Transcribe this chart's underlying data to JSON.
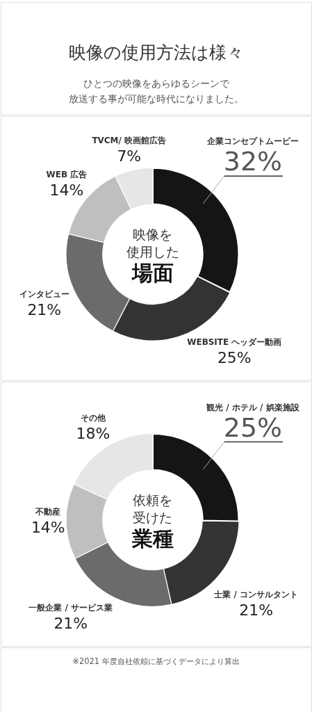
{
  "chart_data": [
    {
      "type": "other",
      "title": "映像の使用方法は様々",
      "annotations": [
        "ひとつの映像をあらゆるシーンで",
        "放送する事が可能な時代になりました。"
      ]
    },
    {
      "type": "donut",
      "categories": [
        "企業コンセプトムービー",
        "WEBSITE ヘッダー動画",
        "インタビュー",
        "WEB 広告",
        "TVCM/ 映画館広告"
      ],
      "values": [
        32,
        25,
        21,
        14,
        7
      ],
      "colors": [
        "#151515",
        "#333333",
        "#6b6b6b",
        "#bfbfbf",
        "#e6e6e6"
      ],
      "value_labels": [
        "32%",
        "25%",
        "21%",
        "14%",
        "7%"
      ],
      "annotations": [
        "映像を",
        "使用した",
        "場面"
      ]
    },
    {
      "type": "donut",
      "categories": [
        "観光 / ホテル / 娯楽施設",
        "士業 / コンサルタント",
        "一般企業 / サービス業",
        "不動産",
        "その他"
      ],
      "values": [
        25,
        21,
        21,
        14,
        18
      ],
      "colors": [
        "#151515",
        "#333333",
        "#6b6b6b",
        "#bfbfbf",
        "#e6e6e6"
      ],
      "value_labels": [
        "25%",
        "21%",
        "21%",
        "14%",
        "18%"
      ],
      "annotations": [
        "依頼を",
        "受けた",
        "業種"
      ]
    },
    {
      "type": "other",
      "annotations": [
        "※2021 年度自社依頼に基づくデータにより算出"
      ]
    }
  ]
}
